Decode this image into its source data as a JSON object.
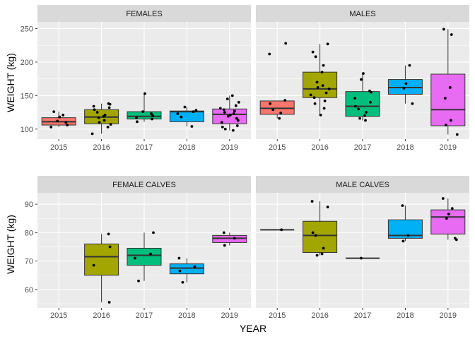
{
  "chart_data": {
    "type": "box",
    "xlabel": "YEAR",
    "ylabel": "WEIGHT (kg)",
    "categories": [
      "2015",
      "2016",
      "2017",
      "2018",
      "2019"
    ],
    "colors": {
      "2015": "#F8766D",
      "2016": "#A3A500",
      "2017": "#00BF7D",
      "2018": "#00B0F6",
      "2019": "#E76BF3"
    },
    "panel_background": "#EBEBEB",
    "strip_background": "#D9D9D9",
    "grid": true,
    "legend": "none",
    "panels": [
      {
        "label": "FEMALES",
        "row": 0,
        "col": 0,
        "ylim": [
          85,
          260
        ],
        "yticks": [
          100,
          150,
          200,
          250
        ],
        "boxes": [
          {
            "year": "2015",
            "q1": 106,
            "median": 111,
            "q3": 117,
            "wmin": 103,
            "wmax": 126
          },
          {
            "year": "2016",
            "q1": 108,
            "median": 118,
            "q3": 129,
            "wmin": 93,
            "wmax": 138
          },
          {
            "year": "2017",
            "q1": 115,
            "median": 119,
            "q3": 126,
            "wmin": 111,
            "wmax": 153
          },
          {
            "year": "2018",
            "q1": 111,
            "median": 126,
            "q3": 127,
            "wmin": 104,
            "wmax": 133
          },
          {
            "year": "2019",
            "q1": 108,
            "median": 122,
            "q3": 130,
            "wmin": 98,
            "wmax": 150
          }
        ],
        "points": [
          {
            "year": "2015",
            "values": [
              103,
              106,
              110,
              112,
              118,
              121,
              126
            ]
          },
          {
            "year": "2016",
            "values": [
              93,
              103,
              107,
              110,
              113,
              117,
              119,
              121,
              125,
              129,
              132,
              134,
              137,
              138
            ]
          },
          {
            "year": "2017",
            "values": [
              111,
              115,
              117,
              120,
              123,
              126,
              153
            ]
          },
          {
            "year": "2018",
            "values": [
              104,
              118,
              123,
              126,
              128,
              133
            ]
          },
          {
            "year": "2019",
            "values": [
              98,
              100,
              103,
              105,
              110,
              113,
              116,
              119,
              121,
              123,
              125,
              127,
              129,
              131,
              135,
              140,
              145,
              150
            ]
          }
        ]
      },
      {
        "label": "MALES",
        "row": 0,
        "col": 1,
        "ylim": [
          85,
          260
        ],
        "yticks": [
          100,
          150,
          200,
          250
        ],
        "boxes": [
          {
            "year": "2015",
            "q1": 122,
            "median": 131,
            "q3": 142,
            "wmin": 116,
            "wmax": 142
          },
          {
            "year": "2016",
            "q1": 147,
            "median": 160,
            "q3": 185,
            "wmin": 121,
            "wmax": 227
          },
          {
            "year": "2017",
            "q1": 119,
            "median": 134,
            "q3": 156,
            "wmin": 113,
            "wmax": 183
          },
          {
            "year": "2018",
            "q1": 152,
            "median": 162,
            "q3": 174,
            "wmin": 138,
            "wmax": 195
          },
          {
            "year": "2019",
            "q1": 105,
            "median": 129,
            "q3": 182,
            "wmin": 92,
            "wmax": 249
          }
        ],
        "points": [
          {
            "year": "2015",
            "values": [
              116,
              124,
              129,
              138,
              143,
              212,
              228
            ]
          },
          {
            "year": "2016",
            "values": [
              121,
              131,
              138,
              142,
              147,
              151,
              154,
              160,
              162,
              165,
              170,
              185,
              195,
              208,
              215,
              227
            ]
          },
          {
            "year": "2017",
            "values": [
              113,
              116,
              120,
              125,
              130,
              134,
              140,
              146,
              155,
              157,
              174,
              183
            ]
          },
          {
            "year": "2018",
            "values": [
              138,
              161,
              168,
              195
            ]
          },
          {
            "year": "2019",
            "values": [
              92,
              106,
              113,
              146,
              162,
              241,
              249
            ]
          }
        ]
      },
      {
        "label": "FEMALE CALVES",
        "row": 1,
        "col": 0,
        "ylim": [
          53.5,
          94
        ],
        "yticks": [
          60,
          70,
          80,
          90
        ],
        "boxes": [
          {
            "year": "2016",
            "q1": 65,
            "median": 71.5,
            "q3": 76,
            "wmin": 55.5,
            "wmax": 79.5
          },
          {
            "year": "2017",
            "q1": 68.5,
            "median": 72,
            "q3": 74.5,
            "wmin": 63,
            "wmax": 80
          },
          {
            "year": "2018",
            "q1": 65.5,
            "median": 67.5,
            "q3": 69,
            "wmin": 62.5,
            "wmax": 71
          },
          {
            "year": "2019",
            "q1": 76.5,
            "median": 78,
            "q3": 79,
            "wmin": 75.5,
            "wmax": 80
          }
        ],
        "points": [
          {
            "year": "2016",
            "values": [
              55.5,
              68.5,
              75,
              79.5
            ]
          },
          {
            "year": "2017",
            "values": [
              63,
              71,
              72.5,
              80
            ]
          },
          {
            "year": "2018",
            "values": [
              62.5,
              66.5,
              68,
              71
            ]
          },
          {
            "year": "2019",
            "values": [
              75.5,
              78,
              80
            ]
          }
        ]
      },
      {
        "label": "MALE CALVES",
        "row": 1,
        "col": 1,
        "ylim": [
          53.5,
          94
        ],
        "yticks": [
          60,
          70,
          80,
          90
        ],
        "boxes": [
          {
            "year": "2015",
            "q1": 81,
            "median": 81,
            "q3": 81,
            "wmin": 81,
            "wmax": 81
          },
          {
            "year": "2016",
            "q1": 73,
            "median": 79,
            "q3": 84,
            "wmin": 72,
            "wmax": 91
          },
          {
            "year": "2017",
            "q1": 71,
            "median": 71,
            "q3": 71,
            "wmin": 71,
            "wmax": 71
          },
          {
            "year": "2018",
            "q1": 78,
            "median": 79,
            "q3": 84.5,
            "wmin": 77,
            "wmax": 89.5
          },
          {
            "year": "2019",
            "q1": 79.5,
            "median": 85.5,
            "q3": 88,
            "wmin": 77.5,
            "wmax": 92
          }
        ],
        "points": [
          {
            "year": "2015",
            "values": [
              81
            ]
          },
          {
            "year": "2016",
            "values": [
              72,
              72.5,
              74.5,
              79,
              80,
              89,
              91
            ]
          },
          {
            "year": "2017",
            "values": [
              71
            ]
          },
          {
            "year": "2018",
            "values": [
              77,
              79,
              89.5
            ]
          },
          {
            "year": "2019",
            "values": [
              77.5,
              78,
              85,
              86.5,
              88.5,
              92
            ]
          }
        ]
      }
    ]
  }
}
